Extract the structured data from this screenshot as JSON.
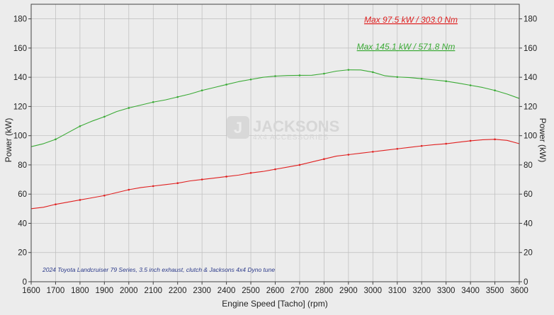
{
  "chart_data": {
    "type": "line",
    "title": "",
    "xlabel": "Engine Speed [Tacho] (rpm)",
    "ylabel": "Power (kW)",
    "ylabel_right": "Power (kW)",
    "xlim": [
      1600,
      3600
    ],
    "ylim": [
      0,
      190
    ],
    "x_ticks": [
      1600,
      1700,
      1800,
      1900,
      2000,
      2100,
      2200,
      2300,
      2400,
      2500,
      2600,
      2700,
      2800,
      2900,
      3000,
      3100,
      3200,
      3300,
      3400,
      3500,
      3600
    ],
    "y_ticks": [
      0,
      20,
      40,
      60,
      80,
      100,
      120,
      140,
      160,
      180
    ],
    "grid": true,
    "annotations": [
      {
        "text": "Max 97.5 kW  / 303.0 Nm",
        "color": "#e02020"
      },
      {
        "text": "Max 145.1 kW  / 571.8 Nm",
        "color": "#3aaa35"
      }
    ],
    "footnote": "2024 Toyota Landcruiser 79 Series, 3.5 inch exhaust, clutch & Jacksons 4x4 Dyno tune",
    "watermark": {
      "brand": "JACKSONS",
      "tagline": "4X4 ACCESSORIES"
    },
    "series": [
      {
        "color": "#3aaa35",
        "x": [
          1600,
          1650,
          1700,
          1750,
          1800,
          1850,
          1900,
          1950,
          2000,
          2050,
          2100,
          2150,
          2200,
          2250,
          2300,
          2350,
          2400,
          2450,
          2500,
          2550,
          2600,
          2650,
          2700,
          2750,
          2800,
          2850,
          2900,
          2950,
          3000,
          3050,
          3100,
          3150,
          3200,
          3250,
          3300,
          3350,
          3400,
          3450,
          3500,
          3550,
          3600
        ],
        "values": [
          92.5,
          94.5,
          97.5,
          102,
          106.5,
          110,
          113,
          116.5,
          119,
          121,
          123,
          124.5,
          126.5,
          128.5,
          131,
          133,
          135,
          137,
          138.5,
          140,
          140.8,
          141.2,
          141.3,
          141.4,
          142.5,
          144.2,
          145.1,
          145,
          143.5,
          141,
          140.2,
          139.8,
          139,
          138.2,
          137.3,
          136,
          134.5,
          133,
          131,
          128.5,
          125.5
        ]
      },
      {
        "color": "#e02020",
        "x": [
          1600,
          1650,
          1700,
          1750,
          1800,
          1850,
          1900,
          1950,
          2000,
          2050,
          2100,
          2150,
          2200,
          2250,
          2300,
          2350,
          2400,
          2450,
          2500,
          2550,
          2600,
          2650,
          2700,
          2750,
          2800,
          2850,
          2900,
          2950,
          3000,
          3050,
          3100,
          3150,
          3200,
          3250,
          3300,
          3350,
          3400,
          3450,
          3500,
          3550,
          3600
        ],
        "values": [
          50,
          51,
          53,
          54.5,
          56,
          57.5,
          59,
          61,
          63,
          64.5,
          65.5,
          66.5,
          67.5,
          69,
          70,
          71,
          72,
          73,
          74.5,
          75.5,
          77,
          78.5,
          80,
          82,
          84,
          86,
          87,
          88,
          89,
          90,
          91,
          92,
          93,
          93.8,
          94.5,
          95.5,
          96.5,
          97.2,
          97.5,
          96.8,
          94.5
        ]
      }
    ]
  }
}
